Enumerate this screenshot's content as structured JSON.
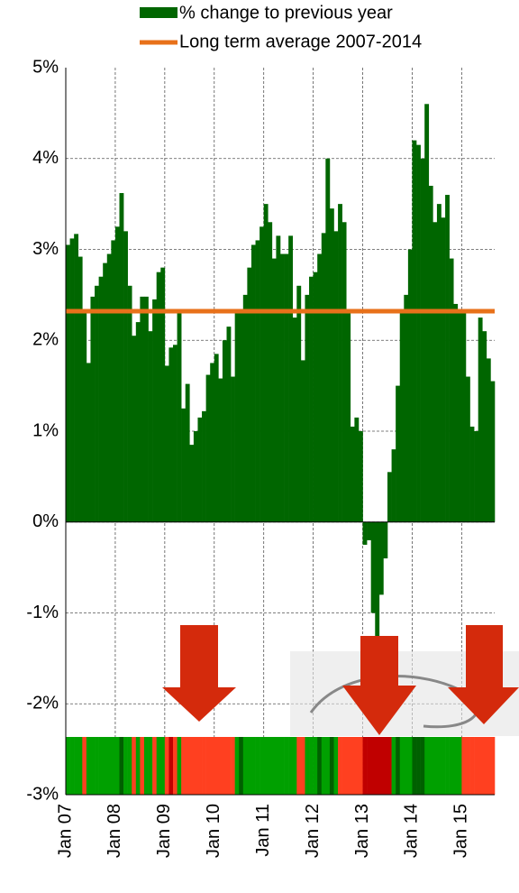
{
  "chart_data": {
    "type": "bar",
    "series": [
      {
        "name": "% change to previous year",
        "color": "#006600",
        "values": [
          3.05,
          3.12,
          3.17,
          2.92,
          2.3,
          1.75,
          2.48,
          2.6,
          2.7,
          2.85,
          2.95,
          3.1,
          3.25,
          3.62,
          3.2,
          2.6,
          2.05,
          2.2,
          2.48,
          2.48,
          2.1,
          2.45,
          2.75,
          2.8,
          1.72,
          1.92,
          1.95,
          2.32,
          1.25,
          1.52,
          0.85,
          1.0,
          1.15,
          1.22,
          1.62,
          1.75,
          1.85,
          1.58,
          2.0,
          2.15,
          1.6,
          2.32,
          2.3,
          2.5,
          2.8,
          3.05,
          3.1,
          3.25,
          3.5,
          3.3,
          2.9,
          3.15,
          2.95,
          2.95,
          3.15,
          2.25,
          2.6,
          1.78,
          2.5,
          2.7,
          2.75,
          2.95,
          3.18,
          4.0,
          3.45,
          3.2,
          3.5,
          3.3,
          2.32,
          1.05,
          1.15,
          1.0,
          -0.25,
          -0.2,
          -1.0,
          -1.5,
          -0.8,
          -0.4,
          0.55,
          0.8,
          1.5,
          2.32,
          2.5,
          3.0,
          4.2,
          4.15,
          4.0,
          4.6,
          3.7,
          3.3,
          3.5,
          3.35,
          3.6,
          2.9,
          2.4,
          2.3,
          2.3,
          1.6,
          1.05,
          1.0,
          2.25,
          2.1,
          1.8,
          1.55
        ]
      }
    ],
    "reference_line": {
      "name": "Long term average 2007-2014",
      "value": 2.32,
      "color": "#e8711a"
    },
    "categories": [
      "Jan 07",
      null,
      null,
      null,
      null,
      null,
      null,
      null,
      null,
      null,
      null,
      null,
      "Jan 08",
      null,
      null,
      null,
      null,
      null,
      null,
      null,
      null,
      null,
      null,
      null,
      "Jan 09",
      null,
      null,
      null,
      null,
      null,
      null,
      null,
      null,
      null,
      null,
      null,
      "Jan 10",
      null,
      null,
      null,
      null,
      null,
      null,
      null,
      null,
      null,
      null,
      null,
      "Jan 11",
      null,
      null,
      null,
      null,
      null,
      null,
      null,
      null,
      null,
      null,
      null,
      "Jan 12",
      null,
      null,
      null,
      null,
      null,
      null,
      null,
      null,
      null,
      null,
      null,
      "Jan 13",
      null,
      null,
      null,
      null,
      null,
      null,
      null,
      null,
      null,
      null,
      null,
      "Jan 14",
      null,
      null,
      null,
      null,
      null,
      null,
      null,
      null,
      null,
      null,
      null,
      "Jan 15",
      null,
      null,
      null,
      null,
      null,
      null,
      null
    ],
    "strip_colors": [
      "#00a000",
      "#00a000",
      "#00a000",
      "#00a000",
      "#ff4020",
      "#00a000",
      "#00a000",
      "#00a000",
      "#00a000",
      "#00a000",
      "#00a000",
      "#00a000",
      "#00a000",
      "#006000",
      "#00a000",
      "#00a000",
      "#ff4020",
      "#00a000",
      "#ff4020",
      "#00a000",
      "#00a000",
      "#ff4020",
      "#00a000",
      "#00a000",
      "#ff4020",
      "#c00000",
      "#ff4020",
      "#00a000",
      "#ff4020",
      "#ff4020",
      "#ff4020",
      "#ff4020",
      "#ff4020",
      "#ff4020",
      "#ff4020",
      "#ff4020",
      "#ff4020",
      "#ff4020",
      "#ff4020",
      "#ff4020",
      "#ff4020",
      "#00a000",
      "#006000",
      "#00a000",
      "#00a000",
      "#00a000",
      "#00a000",
      "#00a000",
      "#00a000",
      "#00a000",
      "#00a000",
      "#00a000",
      "#00a000",
      "#00a000",
      "#00a000",
      "#00a000",
      "#ff4020",
      "#ff4020",
      "#00a000",
      "#00a000",
      "#00a000",
      "#006000",
      "#00a000",
      "#00a000",
      "#006000",
      "#00a000",
      "#ff4020",
      "#ff4020",
      "#ff4020",
      "#ff4020",
      "#ff4020",
      "#ff4020",
      "#c00000",
      "#c00000",
      "#c00000",
      "#c00000",
      "#c00000",
      "#c00000",
      "#c00000",
      "#00a000",
      "#006000",
      "#00a000",
      "#00a000",
      "#00a000",
      "#006000",
      "#006000",
      "#006000",
      "#00a000",
      "#00a000",
      "#00a000",
      "#00a000",
      "#00a000",
      "#00a000",
      "#00a000",
      "#00a000",
      "#00a000",
      "#ff4020",
      "#ff4020",
      "#ff4020",
      "#ff4020",
      "#ff4020",
      "#ff4020",
      "#ff4020",
      "#ff4020"
    ],
    "ylim": [
      -3,
      5
    ],
    "yticks": [
      {
        "value": -3,
        "label": "-3%"
      },
      {
        "value": -2,
        "label": "-2%"
      },
      {
        "value": -1,
        "label": "-1%"
      },
      {
        "value": 0,
        "label": "0%"
      },
      {
        "value": 1,
        "label": "1%"
      },
      {
        "value": 2,
        "label": "2%"
      },
      {
        "value": 3,
        "label": "3%"
      },
      {
        "value": 4,
        "label": "4%"
      },
      {
        "value": 5,
        "label": "5%"
      }
    ],
    "grid": true
  }
}
